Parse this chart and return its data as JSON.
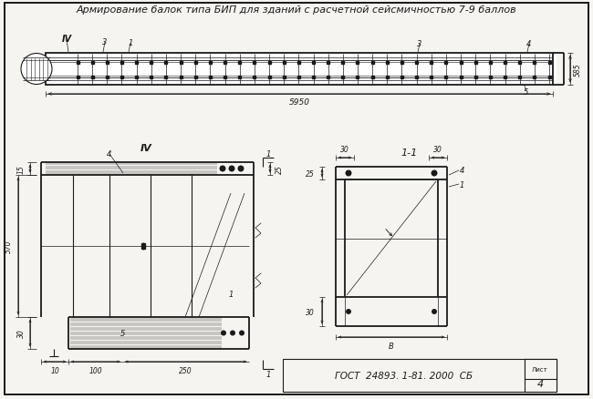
{
  "title": "Армирование балок типа БИП для зданий с расчетной сейсмичностью 7-9 баллов",
  "bg_color": "#f5f4f0",
  "line_color": "#1a1a1a",
  "footer_text": "ГОСТ  24893. 1-81. 2000  СБ",
  "dim_5950": "5950",
  "dim_585": "585",
  "dim_570": "570",
  "dim_30": "30",
  "dim_25": "25",
  "dim_15": "15",
  "dim_35": "25",
  "dim_100": "100",
  "dim_250": "250",
  "dim_B": "B",
  "dim_10": "10",
  "label_IV": "IV",
  "label_11": "1-1",
  "label_1": "1",
  "label_3": "3",
  "label_4": "4",
  "label_5": "5"
}
